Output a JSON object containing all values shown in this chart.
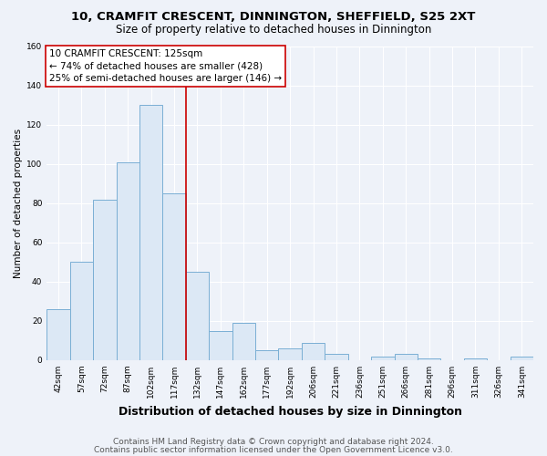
{
  "title": "10, CRAMFIT CRESCENT, DINNINGTON, SHEFFIELD, S25 2XT",
  "subtitle": "Size of property relative to detached houses in Dinnington",
  "xlabel": "Distribution of detached houses by size in Dinnington",
  "ylabel": "Number of detached properties",
  "categories": [
    "42sqm",
    "57sqm",
    "72sqm",
    "87sqm",
    "102sqm",
    "117sqm",
    "132sqm",
    "147sqm",
    "162sqm",
    "177sqm",
    "192sqm",
    "206sqm",
    "221sqm",
    "236sqm",
    "251sqm",
    "266sqm",
    "281sqm",
    "296sqm",
    "311sqm",
    "326sqm",
    "341sqm"
  ],
  "values": [
    26,
    50,
    82,
    101,
    130,
    85,
    45,
    15,
    19,
    5,
    6,
    9,
    3,
    0,
    2,
    3,
    1,
    0,
    1,
    0,
    2
  ],
  "bar_color": "#dce8f5",
  "bar_edge_color": "#7aafd4",
  "vline_color": "#cc0000",
  "vline_pos": 5.5,
  "annotation_box_text": "10 CRAMFIT CRESCENT: 125sqm\n← 74% of detached houses are smaller (428)\n25% of semi-detached houses are larger (146) →",
  "ylim": [
    0,
    160
  ],
  "yticks": [
    0,
    20,
    40,
    60,
    80,
    100,
    120,
    140,
    160
  ],
  "background_color": "#eef2f9",
  "grid_color": "#ffffff",
  "footer_line1": "Contains HM Land Registry data © Crown copyright and database right 2024.",
  "footer_line2": "Contains public sector information licensed under the Open Government Licence v3.0.",
  "title_fontsize": 9.5,
  "subtitle_fontsize": 8.5,
  "xlabel_fontsize": 9,
  "ylabel_fontsize": 7.5,
  "tick_fontsize": 6.5,
  "annotation_fontsize": 7.5,
  "footer_fontsize": 6.5
}
